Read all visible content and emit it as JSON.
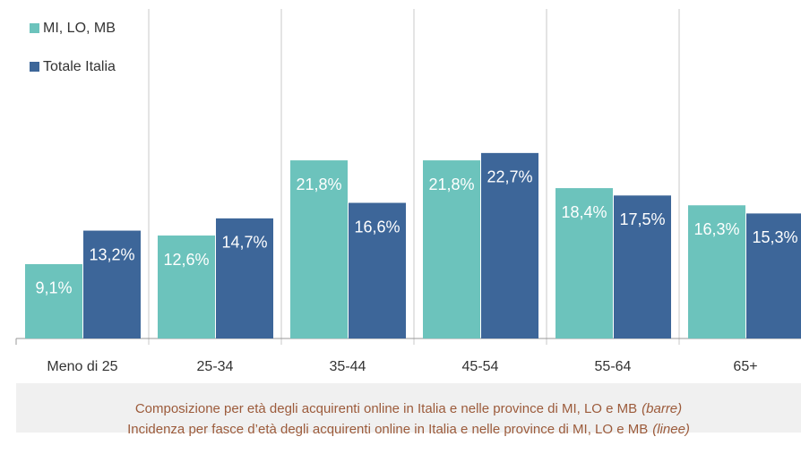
{
  "chart_data": {
    "type": "bar",
    "categories": [
      "Meno di 25",
      "25-34",
      "35-44",
      "45-54",
      "55-64",
      "65+"
    ],
    "series": [
      {
        "name": "MI, LO, MB",
        "color": "#6cc3bc",
        "values": [
          9.1,
          12.6,
          21.8,
          21.8,
          18.4,
          16.3
        ],
        "value_labels": [
          "9,1%",
          "12,6%",
          "21,8%",
          "21,8%",
          "18,4%",
          "16,3%"
        ]
      },
      {
        "name": "Totale Italia",
        "color": "#3d6699",
        "values": [
          13.2,
          14.7,
          16.6,
          22.7,
          17.5,
          15.3
        ],
        "value_labels": [
          "13,2%",
          "14,7%",
          "16,6%",
          "22,7%",
          "17,5%",
          "15,3%"
        ]
      }
    ],
    "ylim": [
      0,
      40
    ],
    "legend": "top-left",
    "caption": [
      {
        "text": "Composizione per età degli acquirenti online in Italia e nelle province di MI, LO e MB",
        "italic": "(barre)"
      },
      {
        "text": "Incidenza per fasce d’età degli acquirenti online in Italia e nelle province di MI, LO e MB",
        "italic": "(linee)"
      }
    ]
  }
}
